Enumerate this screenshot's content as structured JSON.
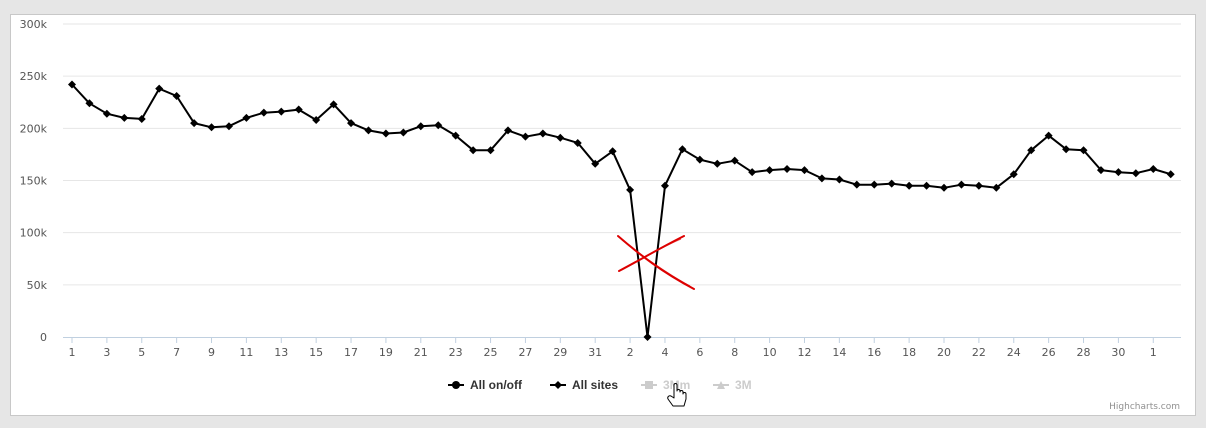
{
  "chart_data": {
    "type": "line",
    "y_ticks": [
      "0",
      "50k",
      "100k",
      "150k",
      "200k",
      "250k",
      "300k"
    ],
    "ylim": [
      0,
      300000
    ],
    "x_tick_labels": [
      "1",
      "3",
      "5",
      "7",
      "9",
      "11",
      "13",
      "15",
      "17",
      "19",
      "21",
      "23",
      "25",
      "27",
      "29",
      "31",
      "2",
      "4",
      "6",
      "8",
      "10",
      "12",
      "14",
      "16",
      "18",
      "20",
      "22",
      "24",
      "26",
      "28",
      "30",
      "1"
    ],
    "grid": true,
    "legend_position": "bottom-center",
    "series": [
      {
        "name": "All sites",
        "color": "#000000",
        "marker": "diamond",
        "values": [
          242000,
          224000,
          214000,
          210000,
          209000,
          238000,
          231000,
          205000,
          201000,
          202000,
          210000,
          215000,
          216000,
          218000,
          208000,
          223000,
          205000,
          198000,
          195000,
          196000,
          202000,
          203000,
          193000,
          179000,
          179000,
          198000,
          192000,
          195000,
          191000,
          186000,
          166000,
          178000,
          141000,
          0,
          145000,
          180000,
          170000,
          166000,
          169000,
          158000,
          160000,
          161000,
          160000,
          152000,
          151000,
          146000,
          146000,
          147000,
          145000,
          145000,
          143000,
          146000,
          145000,
          143000,
          156000,
          179000,
          193000,
          180000,
          179000,
          160000,
          158000,
          157000,
          161000,
          156000
        ]
      }
    ],
    "legend": [
      {
        "label": "All on/off",
        "marker": "circle",
        "color": "#000000",
        "active": true
      },
      {
        "label": "All sites",
        "marker": "diamond",
        "color": "#000000",
        "active": true
      },
      {
        "label": "3Mm",
        "marker": "square",
        "color": "#cccccc",
        "active": false
      },
      {
        "label": "3M",
        "marker": "triangle",
        "color": "#cccccc",
        "active": false
      }
    ],
    "credits": "Highcharts.com"
  },
  "annotation_color": "#dd0000"
}
